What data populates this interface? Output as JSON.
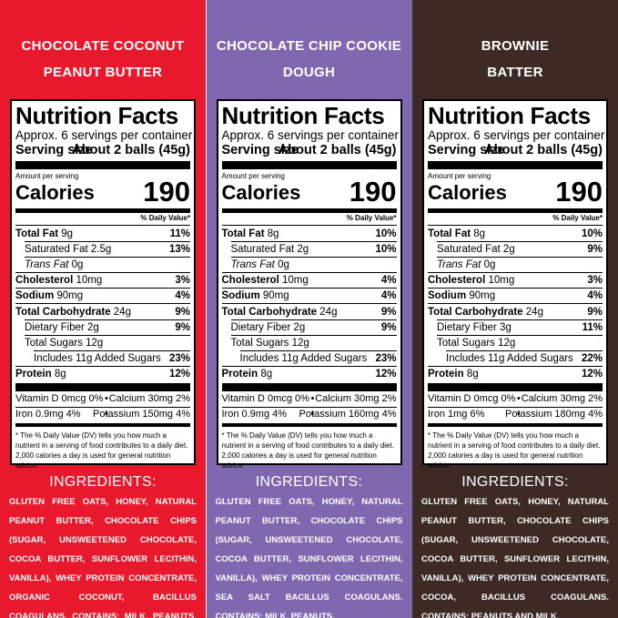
{
  "panels": [
    {
      "title": [
        "CHOCOLATE COCONUT",
        "PEANUT BUTTER"
      ],
      "label": {
        "heading": "Nutrition Facts",
        "servings": "Approx. 6 servings per container",
        "serving_size_label": "Serving size",
        "serving_size": "About 2 balls (45g)",
        "amount_per_serving": "Amount per serving",
        "calories_label": "Calories",
        "calories": "190",
        "dv_header": "% Daily Value*",
        "rows": [
          {
            "name": "Total Fat",
            "amount": "9g",
            "dv": "11%"
          },
          {
            "name": "Saturated Fat",
            "amount": "2.5g",
            "dv": "13%"
          },
          {
            "name": "Trans Fat",
            "amount": "0g"
          },
          {
            "name": "Cholesterol",
            "amount": "10mg",
            "dv": "3%"
          },
          {
            "name": "Sodium",
            "amount": "90mg",
            "dv": "4%"
          },
          {
            "name": "Total Carbohydrate",
            "amount": "24g",
            "dv": "9%"
          },
          {
            "name": "Dietary Fiber",
            "amount": "2g",
            "dv": "9%"
          },
          {
            "name": "Total Sugars",
            "amount": "12g"
          },
          {
            "name": "Includes 11g Added Sugars",
            "dv": "23%"
          },
          {
            "name": "Protein",
            "amount": "8g",
            "dv": "12%"
          }
        ],
        "vitamins": [
          [
            "Vitamin D 0mcg 0%",
            "Calcium 30mg 2%"
          ],
          [
            "Iron 0.9mg 4%",
            "Potassium 150mg 4%"
          ]
        ],
        "footnote": "* The % Daily Value (DV) tells you how much a nutrient in a serving of food contributes to a daily diet. 2,000 calories a day is used for general nutrition advice."
      },
      "ingredients_heading": "INGREDIENTS:",
      "ingredients": "GLUTEN FREE OATS, HONEY, NATURAL PEANUT BUTTER, CHOCOLATE CHIPS (SUGAR, UNSWEETENED CHOCOLATE, COCOA BUTTER, SUNFLOWER LECITHIN, VANILLA), WHEY PROTEIN CONCENTRATE, ORGANIC COCONUT, BACILLUS COAGULANS. CONTAINS: MILK, PEANUTS, TREE NUTS."
    },
    {
      "title": [
        "CHOCOLATE CHIP COOKIE",
        "DOUGH"
      ],
      "label": {
        "heading": "Nutrition Facts",
        "servings": "Approx. 6 servings per container",
        "serving_size_label": "Serving size",
        "serving_size": "About 2 balls (45g)",
        "amount_per_serving": "Amount per serving",
        "calories_label": "Calories",
        "calories": "190",
        "dv_header": "% Daily Value*",
        "rows": [
          {
            "name": "Total Fat",
            "amount": "8g",
            "dv": "10%"
          },
          {
            "name": "Saturated Fat",
            "amount": "2g",
            "dv": "10%"
          },
          {
            "name": "Trans Fat",
            "amount": "0g"
          },
          {
            "name": "Cholesterol",
            "amount": "10mg",
            "dv": "4%"
          },
          {
            "name": "Sodium",
            "amount": "90mg",
            "dv": "4%"
          },
          {
            "name": "Total Carbohydrate",
            "amount": "24g",
            "dv": "9%"
          },
          {
            "name": "Dietary Fiber",
            "amount": "2g",
            "dv": "9%"
          },
          {
            "name": "Total Sugars",
            "amount": "12g"
          },
          {
            "name": "Includes 11g Added Sugars",
            "dv": "23%"
          },
          {
            "name": "Protein",
            "amount": "8g",
            "dv": "12%"
          }
        ],
        "vitamins": [
          [
            "Vitamin D 0mcg 0%",
            "Calcium 30mg 2%"
          ],
          [
            "Iron 0.9mg 4%",
            "Potassium 160mg 4%"
          ]
        ],
        "footnote": "* The % Daily Value (DV) tells you how much a nutrient in a serving of food contributes to a daily diet. 2,000 calories a day is used for general nutrition advice."
      },
      "ingredients_heading": "INGREDIENTS:",
      "ingredients": "GLUTEN FREE OATS, HONEY, NATURAL PEANUT BUTTER, CHOCOLATE CHIPS (SUGAR, UNSWEETENED CHOCOLATE, COCOA BUTTER, SUNFLOWER LECITHIN, VANILLA), WHEY PROTEIN CONCENTRATE, SEA SALT BACILLUS COAGULANS. CONTAINS: MILK, PEANUTS."
    },
    {
      "title": [
        "BROWNIE",
        "BATTER"
      ],
      "label": {
        "heading": "Nutrition Facts",
        "servings": "Approx. 6 servings per container",
        "serving_size_label": "Serving size",
        "serving_size": "About 2 balls (45g)",
        "amount_per_serving": "Amount per serving",
        "calories_label": "Calories",
        "calories": "190",
        "dv_header": "% Daily Value*",
        "rows": [
          {
            "name": "Total Fat",
            "amount": "8g",
            "dv": "10%"
          },
          {
            "name": "Saturated Fat",
            "amount": "2g",
            "dv": "9%"
          },
          {
            "name": "Trans Fat",
            "amount": "0g"
          },
          {
            "name": "Cholesterol",
            "amount": "10mg",
            "dv": "3%"
          },
          {
            "name": "Sodium",
            "amount": "90mg",
            "dv": "4%"
          },
          {
            "name": "Total Carbohydrate",
            "amount": "24g",
            "dv": "9%"
          },
          {
            "name": "Dietary Fiber",
            "amount": "3g",
            "dv": "11%"
          },
          {
            "name": "Total Sugars",
            "amount": "12g"
          },
          {
            "name": "Includes 11g Added Sugars",
            "dv": "22%"
          },
          {
            "name": "Protein",
            "amount": "8g",
            "dv": "12%"
          }
        ],
        "vitamins": [
          [
            "Vitamin D 0mcg 0%",
            "Calcium 30mg 2%"
          ],
          [
            "Iron 1mg 6%",
            "Potassium 180mg 4%"
          ]
        ],
        "footnote": "* The % Daily Value (DV) tells you how much a nutrient in a serving of food contributes to a daily diet. 2,000 calories a day is used for general nutrition advice."
      },
      "ingredients_heading": "INGREDIENTS:",
      "ingredients": "GLUTEN FREE OATS, HONEY, NATURAL PEANUT BUTTER, CHOCOLATE CHIPS (SUGAR, UNSWEETENED CHOCOLATE, COCOA BUTTER, SUNFLOWER LECITHIN, VANILLA), WHEY PROTEIN CONCENTRATE, COCOA, BACILLUS COAGULANS. CONTAINS: PEANUTS AND MILK."
    }
  ]
}
